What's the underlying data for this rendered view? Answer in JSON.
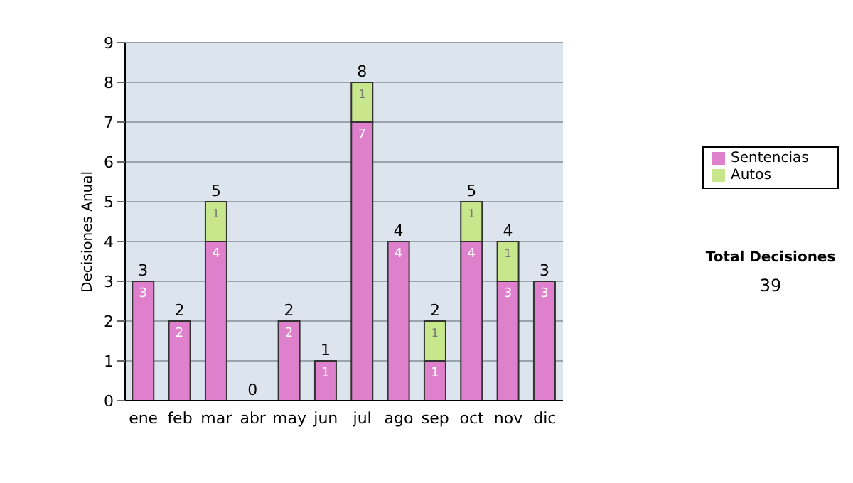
{
  "chart_data": {
    "type": "bar",
    "ylabel": "Decisiones Anual",
    "categories": [
      "ene",
      "feb",
      "mar",
      "abr",
      "may",
      "jun",
      "jul",
      "ago",
      "sep",
      "oct",
      "nov",
      "dic"
    ],
    "series": [
      {
        "name": "Sentencias",
        "color": "#de80cc",
        "values": [
          3,
          2,
          4,
          0,
          2,
          1,
          7,
          4,
          1,
          4,
          3,
          3
        ],
        "value_labels": [
          "3",
          "2",
          "4",
          null,
          "2",
          "1",
          "7",
          "4",
          "1",
          "4",
          "3",
          "3"
        ]
      },
      {
        "name": "Autos",
        "color": "#c8e68c",
        "values": [
          0,
          0,
          1,
          0,
          0,
          0,
          1,
          0,
          1,
          1,
          1,
          0
        ],
        "value_labels": [
          null,
          null,
          "1",
          null,
          null,
          null,
          "1",
          null,
          "1",
          "1",
          "1",
          null
        ]
      }
    ],
    "stacked": true,
    "totals": [
      "3",
      "2",
      "5",
      "0",
      "2",
      "1",
      "8",
      "4",
      "2",
      "5",
      "4",
      "3"
    ],
    "ylim": [
      0,
      9
    ],
    "yticks": [
      0,
      1,
      2,
      3,
      4,
      5,
      6,
      7,
      8,
      9
    ],
    "grid": "y",
    "legend": "right",
    "annotations": [
      "Total Decisiones",
      "39"
    ]
  }
}
